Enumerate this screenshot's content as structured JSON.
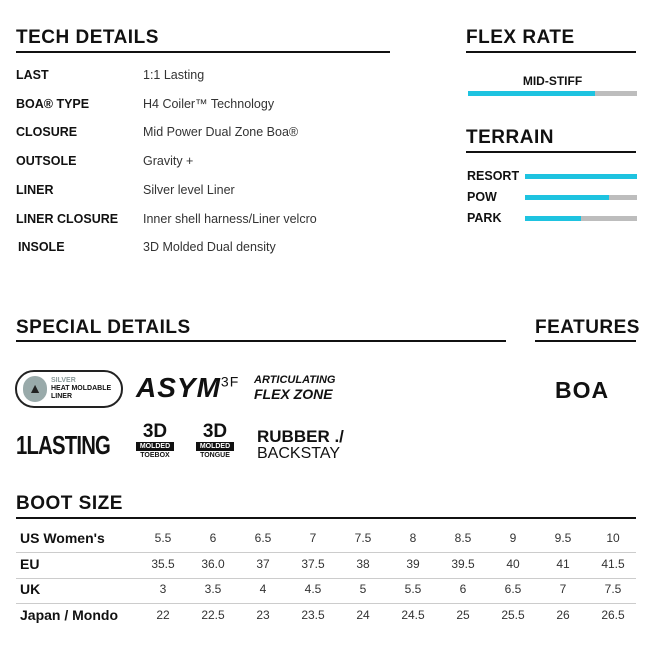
{
  "tech_details": {
    "title": "TECH DETAILS",
    "rows": [
      {
        "label": "LAST",
        "value": "1:1 Lasting"
      },
      {
        "label": "BOA® TYPE",
        "value": "H4 Coiler™ Technology"
      },
      {
        "label": "CLOSURE",
        "value": "Mid Power Dual Zone Boa®"
      },
      {
        "label": "OUTSOLE",
        "value": "Gravity +"
      },
      {
        "label": "LINER",
        "value": "Silver level Liner"
      },
      {
        "label": "LINER CLOSURE",
        "value": "Inner shell harness/Liner velcro"
      },
      {
        "label": "INSOLE",
        "value": "3D Molded Dual density"
      }
    ]
  },
  "flex_rate": {
    "title": "FLEX RATE",
    "label": "MID-STIFF",
    "level_percent": 75
  },
  "terrain": {
    "title": "TERRAIN",
    "items": [
      {
        "label": "RESORT",
        "percent": 100
      },
      {
        "label": "POW",
        "percent": 75
      },
      {
        "label": "PARK",
        "percent": 50
      }
    ]
  },
  "special_details": {
    "title": "SPECIAL DETAILS",
    "logos": {
      "liner": [
        "SILVER",
        "HEAT MOLDABLE",
        "LINER"
      ],
      "asym": "ASYM",
      "asym_sup": "3F",
      "flex": [
        "ARTICULATING",
        "FLEX ZONE"
      ],
      "lasting": "LASTING",
      "toebox": [
        "3D",
        "MOLDED",
        "TOEBOX"
      ],
      "tongue": [
        "3D",
        "MOLDED",
        "TONGUE"
      ],
      "backstay": [
        "RUBBER ./",
        "BACKSTAY"
      ]
    }
  },
  "features": {
    "title": "FEATURES",
    "logo": "BOA"
  },
  "boot_size": {
    "title": "BOOT SIZE",
    "rows": [
      {
        "label": "US Women's",
        "values": [
          "5.5",
          "6",
          "6.5",
          "7",
          "7.5",
          "8",
          "8.5",
          "9",
          "9.5",
          "10"
        ]
      },
      {
        "label": "EU",
        "values": [
          "35.5",
          "36.0",
          "37",
          "37.5",
          "38",
          "39",
          "39.5",
          "40",
          "41",
          "41.5"
        ]
      },
      {
        "label": "UK",
        "values": [
          "3",
          "3.5",
          "4",
          "4.5",
          "5",
          "5.5",
          "6",
          "6.5",
          "7",
          "7.5"
        ]
      },
      {
        "label": "Japan / Mondo",
        "values": [
          "22",
          "22.5",
          "23",
          "23.5",
          "24",
          "24.5",
          "25",
          "25.5",
          "26",
          "26.5"
        ]
      }
    ]
  },
  "colors": {
    "accent": "#1ec3e0",
    "track": "#bdbdbd"
  }
}
